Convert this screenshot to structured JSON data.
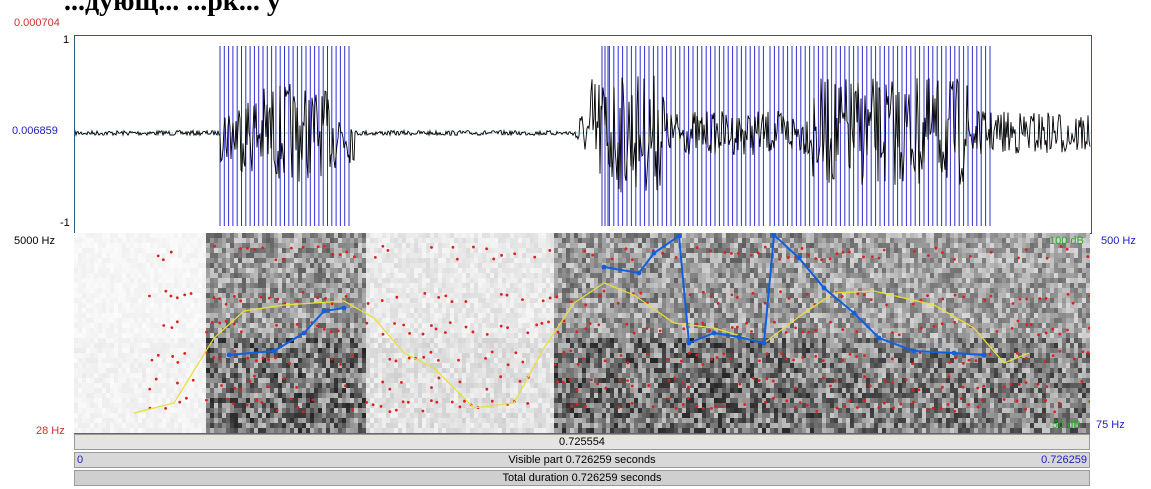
{
  "title_clipped": "...дующ... ...рк... у",
  "waveform": {
    "top_value": "0.000704",
    "y_max": "1",
    "y_mid": "0.006859",
    "y_min": "-1"
  },
  "spectrogram": {
    "freq_top": "5000 Hz",
    "freq_bottom": "28 Hz",
    "intensity_top": "100 dB",
    "intensity_bottom": "50 dB",
    "pitch_top": "500 Hz",
    "pitch_bottom": "75 Hz"
  },
  "cursor_bar": {
    "value": "0.725554"
  },
  "visible_bar": {
    "left": "0",
    "label": "Visible part 0.726259 seconds",
    "right": "0.726259"
  },
  "total_bar": {
    "label": "Total duration 0.726259 seconds"
  },
  "colors": {
    "waveform_frame": "#2a5d7a",
    "pulse_lines": "#3030d0",
    "formant_dots": "#e02020",
    "pitch_line": "#1060e0",
    "intensity_line": "#e8e030"
  }
}
